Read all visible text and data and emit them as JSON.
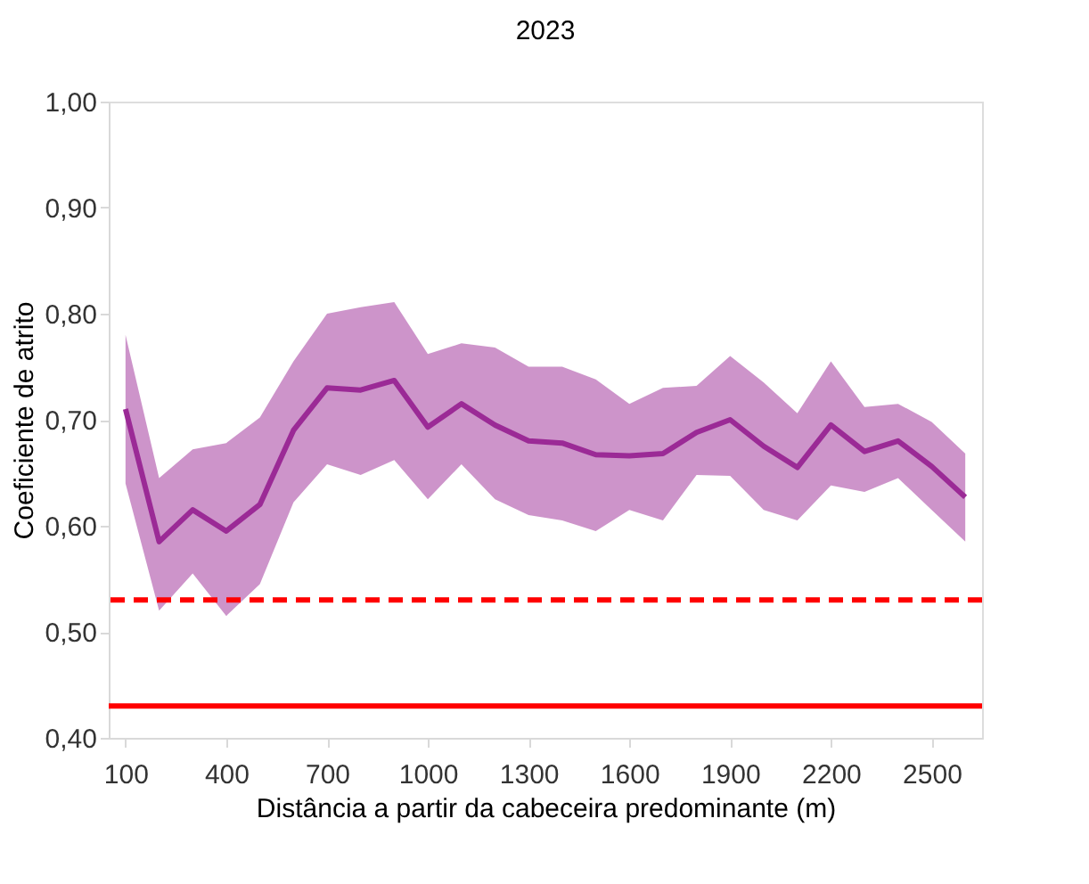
{
  "chart_data": {
    "type": "line",
    "title": "2023",
    "xlabel": "Distância a partir da cabeceira predominante (m)",
    "ylabel": "Coeficiente de atrito",
    "x": [
      100,
      200,
      300,
      400,
      500,
      600,
      700,
      800,
      900,
      1000,
      1100,
      1200,
      1300,
      1400,
      1500,
      1600,
      1700,
      1800,
      1900,
      2000,
      2100,
      2200,
      2300,
      2400,
      2500,
      2600
    ],
    "series": [
      {
        "color": "#9b2a96",
        "values": [
          0.71,
          0.585,
          0.615,
          0.595,
          0.62,
          0.69,
          0.73,
          0.728,
          0.737,
          0.693,
          0.715,
          0.695,
          0.68,
          0.678,
          0.667,
          0.666,
          0.668,
          0.688,
          0.7,
          0.675,
          0.655,
          0.695,
          0.67,
          0.68,
          0.656,
          0.627
        ],
        "upper": [
          0.78,
          0.645,
          0.672,
          0.678,
          0.702,
          0.755,
          0.8,
          0.806,
          0.811,
          0.762,
          0.772,
          0.768,
          0.75,
          0.75,
          0.738,
          0.715,
          0.73,
          0.732,
          0.76,
          0.735,
          0.706,
          0.755,
          0.712,
          0.715,
          0.698,
          0.668
        ],
        "lower": [
          0.64,
          0.52,
          0.555,
          0.515,
          0.545,
          0.622,
          0.658,
          0.648,
          0.662,
          0.625,
          0.658,
          0.625,
          0.61,
          0.605,
          0.595,
          0.615,
          0.605,
          0.648,
          0.647,
          0.615,
          0.605,
          0.638,
          0.632,
          0.645,
          0.615,
          0.585
        ]
      }
    ],
    "ref_lines": [
      {
        "axis": "y",
        "value": 0.53,
        "color": "#ff0000",
        "line_style": "dashed"
      },
      {
        "axis": "y",
        "value": 0.43,
        "color": "#ff0000",
        "line_style": "solid"
      }
    ],
    "xlim": [
      50,
      2650
    ],
    "xticks": [
      100,
      400,
      700,
      1000,
      1300,
      1600,
      1900,
      2200,
      2500
    ],
    "ylim": [
      0.4,
      1.0
    ],
    "yticks": [
      {
        "value": 0.4,
        "label": "0,40"
      },
      {
        "value": 0.5,
        "label": "0,50"
      },
      {
        "value": 0.6,
        "label": "0,60"
      },
      {
        "value": 0.7,
        "label": "0,70"
      },
      {
        "value": 0.8,
        "label": "0,80"
      },
      {
        "value": 0.9,
        "label": "0,90"
      },
      {
        "value": 1.0,
        "label": "1,00"
      }
    ],
    "grid": false,
    "marker": "none",
    "line_style": "solid"
  }
}
